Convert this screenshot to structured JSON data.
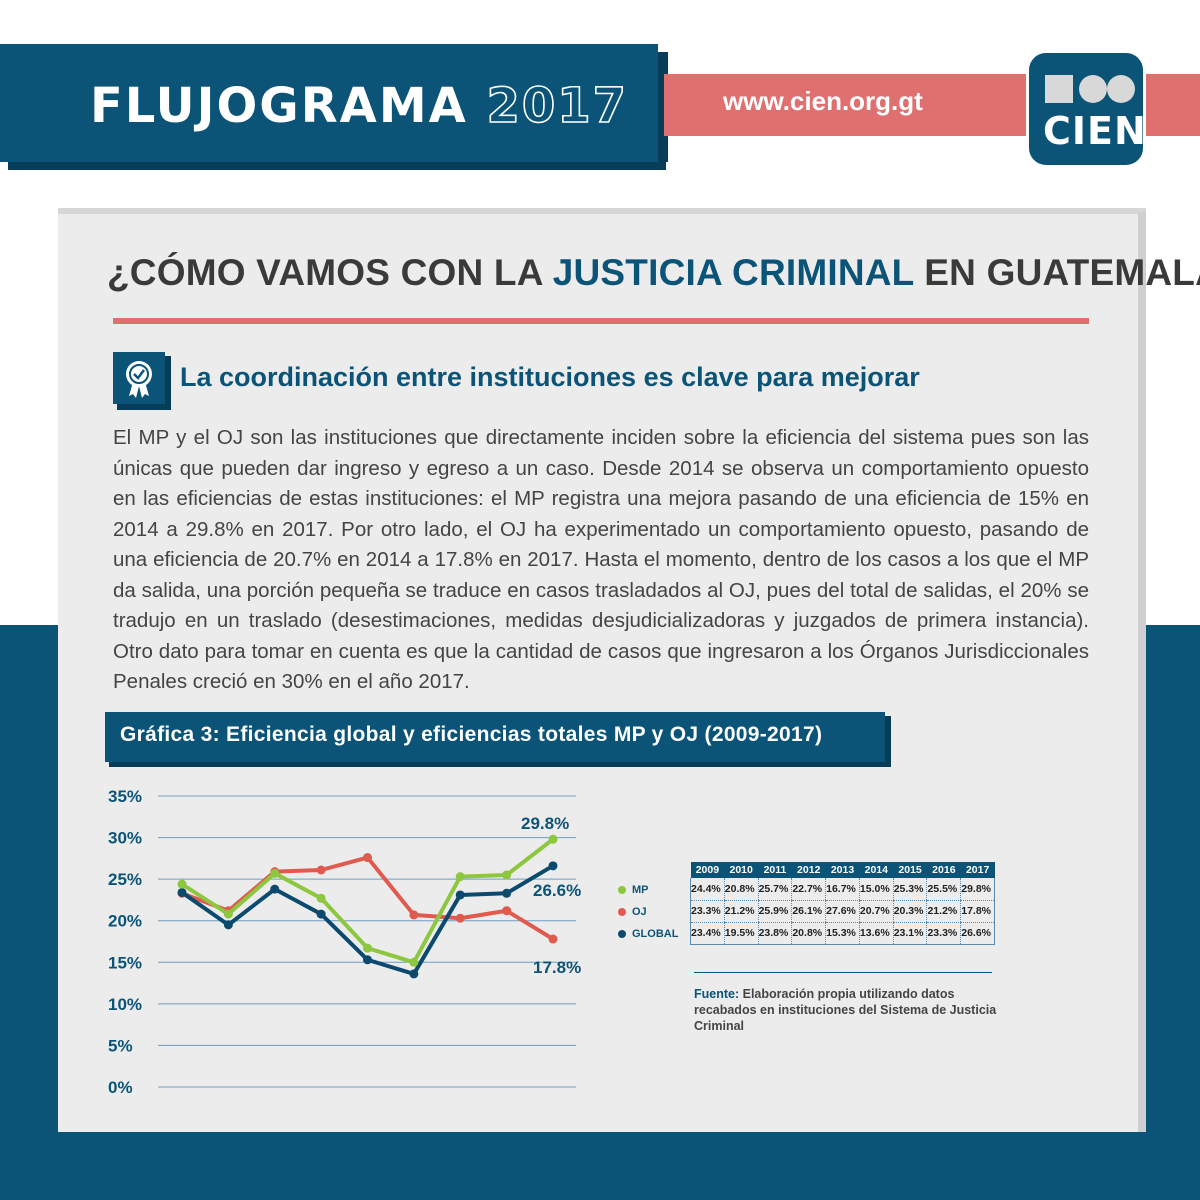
{
  "header": {
    "title": "FLUJOGRAMA",
    "year": "2017",
    "url": "www.cien.org.gt",
    "logo_text": "CIEN"
  },
  "colors": {
    "navy": "#0b5478",
    "coral": "#e07070",
    "mp_green": "#8dc63f",
    "oj_red": "#e05a4e",
    "global_navy": "#0b4a6e"
  },
  "card": {
    "title_part1": "¿CÓMO VAMOS CON LA ",
    "title_highlight": "JUSTICIA CRIMINAL",
    "title_part2": " EN GUATEMALA?",
    "badge_icon": "award-ribbon-icon",
    "subtitle": "La coordinación entre instituciones es clave para mejorar",
    "body": "El MP y el OJ son las instituciones que directamente inciden sobre la eficiencia del sistema pues son las únicas que pueden dar ingreso y egreso a un caso. Desde 2014 se observa un comportamiento opuesto en las eficiencias de estas instituciones: el MP registra una mejora pasando de una eficiencia de 15% en 2014 a 29.8% en 2017. Por otro lado, el OJ ha experimentado un comportamiento opuesto, pasando de una eficiencia de 20.7% en 2014 a 17.8% en 2017. Hasta el momento, dentro de los casos a los que el MP da salida, una porción pequeña se traduce en casos trasladados al OJ, pues del total de salidas, el 20% se tradujo en un traslado (desestimaciones, medidas desjudicializadoras y juzgados de primera instancia). Otro dato para tomar en cuenta es que la cantidad de casos que ingresaron a los Órganos Jurisdiccionales Penales creció en 30% en el año 2017."
  },
  "chart_data": {
    "type": "line",
    "title": "Gráfica 3: Eficiencia global y eficiencias totales MP y OJ (2009-2017)",
    "x": [
      "2009",
      "2010",
      "2011",
      "2012",
      "2013",
      "2014",
      "2015",
      "2016",
      "2017"
    ],
    "ylim": [
      0,
      35
    ],
    "yticks": [
      "35%",
      "30%",
      "25%",
      "20%",
      "15%",
      "10%",
      "5%",
      "0%"
    ],
    "grid": true,
    "series": [
      {
        "name": "MP",
        "color": "#8dc63f",
        "values": [
          24.4,
          20.8,
          25.7,
          22.7,
          16.7,
          15.0,
          25.3,
          25.5,
          29.8
        ],
        "table": [
          "24.4%",
          "20.8%",
          "25.7%",
          "22.7%",
          "16.7%",
          "15.0%",
          "25.3%",
          "25.5%",
          "29.8%"
        ],
        "end_label": "29.8%"
      },
      {
        "name": "OJ",
        "color": "#e05a4e",
        "values": [
          23.3,
          21.2,
          25.9,
          26.1,
          27.6,
          20.7,
          20.3,
          21.2,
          17.8
        ],
        "table": [
          "23.3%",
          "21.2%",
          "25.9%",
          "26.1%",
          "27.6%",
          "20.7%",
          "20.3%",
          "21.2%",
          "17.8%"
        ],
        "end_label": "17.8%"
      },
      {
        "name": "GLOBAL",
        "color": "#0b4a6e",
        "values": [
          23.4,
          19.5,
          23.8,
          20.8,
          15.3,
          13.6,
          23.1,
          23.3,
          26.6
        ],
        "table": [
          "23.4%",
          "19.5%",
          "23.8%",
          "20.8%",
          "15.3%",
          "13.6%",
          "23.1%",
          "23.3%",
          "26.6%"
        ],
        "end_label": "26.6%"
      }
    ]
  },
  "source": {
    "label": "Fuente:",
    "text": " Elaboración propia utilizando datos recabados en instituciones del Sistema de Justicia Criminal"
  }
}
